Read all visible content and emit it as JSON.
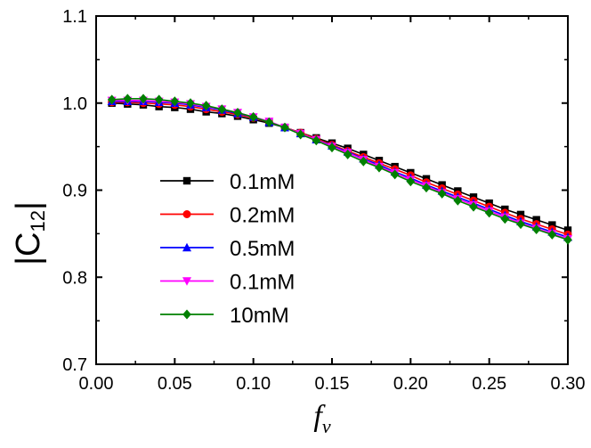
{
  "chart_data": {
    "type": "line",
    "title": "",
    "xlabel": "f",
    "xlabel_subscript": "v",
    "ylabel": "|C",
    "ylabel_subscript": "12",
    "ylabel_suffix": "|",
    "xlim": [
      0.0,
      0.3
    ],
    "ylim": [
      0.7,
      1.1
    ],
    "xticks": [
      0.0,
      0.05,
      0.1,
      0.15,
      0.2,
      0.25,
      0.3
    ],
    "xtick_labels": [
      "0.00",
      "0.05",
      "0.10",
      "0.15",
      "0.20",
      "0.25",
      "0.30"
    ],
    "yticks": [
      0.7,
      0.8,
      0.9,
      1.0,
      1.1
    ],
    "ytick_labels": [
      "0.7",
      "0.8",
      "0.9",
      "1.0",
      "1.1"
    ],
    "grid": false,
    "legend_position": "center-left",
    "x": [
      0.01,
      0.02,
      0.03,
      0.04,
      0.05,
      0.06,
      0.07,
      0.08,
      0.09,
      0.1,
      0.11,
      0.12,
      0.13,
      0.14,
      0.15,
      0.16,
      0.17,
      0.18,
      0.19,
      0.2,
      0.21,
      0.22,
      0.23,
      0.24,
      0.25,
      0.26,
      0.27,
      0.28,
      0.29,
      0.3
    ],
    "series": [
      {
        "name": "0.1mM",
        "color": "#000000",
        "marker": "square",
        "values": [
          1.0,
          0.999,
          0.998,
          0.996,
          0.995,
          0.993,
          0.99,
          0.988,
          0.985,
          0.981,
          0.977,
          0.972,
          0.966,
          0.96,
          0.954,
          0.948,
          0.941,
          0.934,
          0.927,
          0.92,
          0.913,
          0.906,
          0.899,
          0.892,
          0.885,
          0.878,
          0.872,
          0.866,
          0.86,
          0.854
        ]
      },
      {
        "name": "0.2mM",
        "color": "#ff0000",
        "marker": "circle",
        "values": [
          1.001,
          1.001,
          1.0,
          0.999,
          0.998,
          0.996,
          0.993,
          0.99,
          0.987,
          0.983,
          0.978,
          0.972,
          0.966,
          0.959,
          0.952,
          0.945,
          0.938,
          0.931,
          0.924,
          0.917,
          0.909,
          0.902,
          0.895,
          0.888,
          0.881,
          0.874,
          0.867,
          0.861,
          0.855,
          0.849
        ]
      },
      {
        "name": "0.5mM",
        "color": "#0000ff",
        "marker": "triangle-up",
        "values": [
          1.002,
          1.002,
          1.002,
          1.001,
          1.0,
          0.998,
          0.995,
          0.992,
          0.988,
          0.984,
          0.978,
          0.972,
          0.965,
          0.958,
          0.951,
          0.944,
          0.936,
          0.929,
          0.921,
          0.914,
          0.906,
          0.899,
          0.892,
          0.885,
          0.878,
          0.871,
          0.864,
          0.858,
          0.852,
          0.846
        ]
      },
      {
        "name": "0.1mM",
        "color": "#ff00ff",
        "marker": "triangle-down",
        "values": [
          1.003,
          1.003,
          1.003,
          1.002,
          1.001,
          0.999,
          0.996,
          0.993,
          0.989,
          0.984,
          0.979,
          0.972,
          0.965,
          0.958,
          0.95,
          0.943,
          0.935,
          0.927,
          0.92,
          0.912,
          0.905,
          0.897,
          0.89,
          0.883,
          0.876,
          0.869,
          0.862,
          0.856,
          0.85,
          0.844
        ]
      },
      {
        "name": "10mM",
        "color": "#008000",
        "marker": "diamond",
        "values": [
          1.004,
          1.005,
          1.005,
          1.004,
          1.002,
          1.0,
          0.997,
          0.993,
          0.989,
          0.984,
          0.978,
          0.972,
          0.964,
          0.957,
          0.949,
          0.941,
          0.933,
          0.926,
          0.918,
          0.91,
          0.903,
          0.896,
          0.888,
          0.881,
          0.874,
          0.867,
          0.861,
          0.855,
          0.849,
          0.843
        ]
      }
    ]
  }
}
